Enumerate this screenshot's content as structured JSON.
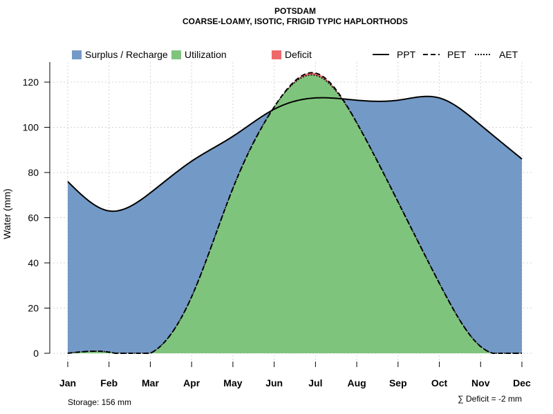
{
  "chart_data": {
    "type": "area",
    "title": "POTSDAM",
    "subtitle": "COARSE-LOAMY, ISOTIC, FRIGID TYPIC HAPLORTHODS",
    "xlabel": "",
    "ylabel": "Water (mm)",
    "ylim": [
      0,
      130
    ],
    "yticks": [
      0,
      20,
      40,
      60,
      80,
      100,
      120
    ],
    "categories": [
      "Jan",
      "Feb",
      "Mar",
      "Apr",
      "May",
      "Jun",
      "Jul",
      "Aug",
      "Sep",
      "Oct",
      "Nov",
      "Dec"
    ],
    "grid": true,
    "legend_position": "top",
    "series": [
      {
        "name": "PPT",
        "style": "solid",
        "values": [
          76,
          63,
          71,
          85,
          96,
          108,
          113,
          112,
          112,
          113,
          101,
          86
        ]
      },
      {
        "name": "PET",
        "style": "dashed",
        "values": [
          0,
          0.5,
          0,
          25,
          73,
          109,
          124,
          102,
          67,
          31,
          3,
          0
        ]
      },
      {
        "name": "AET",
        "style": "dotted",
        "values": [
          0,
          0.5,
          0,
          25,
          73,
          109,
          123,
          102,
          67,
          31,
          3,
          0
        ]
      }
    ],
    "areas": [
      {
        "name": "Surplus / Recharge",
        "color": "#7399c6"
      },
      {
        "name": "Utilization",
        "color": "#7fc47c"
      },
      {
        "name": "Deficit",
        "color": "#ee6a6a"
      }
    ],
    "storage_label": "Storage: 156 mm",
    "deficit_label": "∑ Deficit = -2 mm"
  }
}
